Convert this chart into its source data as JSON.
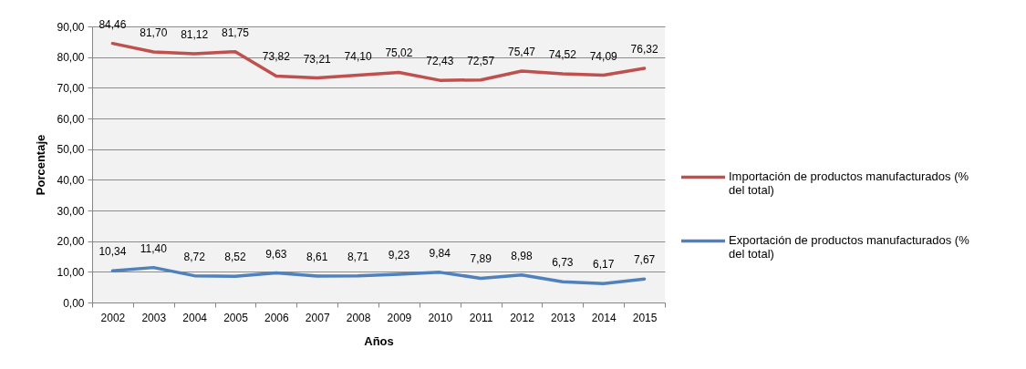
{
  "chart_data": {
    "type": "line",
    "xlabel": "Años",
    "ylabel": "Porcentaje",
    "categories": [
      "2002",
      "2003",
      "2004",
      "2005",
      "2006",
      "2007",
      "2008",
      "2009",
      "2010",
      "2011",
      "2012",
      "2013",
      "2014",
      "2015"
    ],
    "series": [
      {
        "name": "Importación de productos manufacturados (% del total)",
        "color": "#c0504d",
        "values": [
          84.46,
          81.7,
          81.12,
          81.75,
          73.82,
          73.21,
          74.1,
          75.02,
          72.43,
          72.57,
          75.47,
          74.52,
          74.09,
          76.32
        ],
        "value_labels": [
          "84,46",
          "81,70",
          "81,12",
          "81,75",
          "73,82",
          "73,21",
          "74,10",
          "75,02",
          "72,43",
          "72,57",
          "75,47",
          "74,52",
          "74,09",
          "76,32"
        ]
      },
      {
        "name": "Exportación de productos manufacturados (% del total)",
        "color": "#4f81bd",
        "values": [
          10.34,
          11.4,
          8.72,
          8.52,
          9.63,
          8.61,
          8.71,
          9.23,
          9.84,
          7.89,
          8.98,
          6.73,
          6.17,
          7.67
        ],
        "value_labels": [
          "10,34",
          "11,40",
          "8,72",
          "8,52",
          "9,63",
          "8,61",
          "8,71",
          "9,23",
          "9,84",
          "7,89",
          "8,98",
          "6,73",
          "6,17",
          "7,67"
        ]
      }
    ],
    "ylim": [
      0,
      90
    ],
    "yticks": [
      {
        "value": 0,
        "label": "0,00"
      },
      {
        "value": 10,
        "label": "10,00"
      },
      {
        "value": 20,
        "label": "20,00"
      },
      {
        "value": 30,
        "label": "30,00"
      },
      {
        "value": 40,
        "label": "40,00"
      },
      {
        "value": 50,
        "label": "50,00"
      },
      {
        "value": 60,
        "label": "60,00"
      },
      {
        "value": 70,
        "label": "70,00"
      },
      {
        "value": 80,
        "label": "80,00"
      },
      {
        "value": 90,
        "label": "90,00"
      }
    ],
    "grid": "y",
    "legend": "right"
  }
}
